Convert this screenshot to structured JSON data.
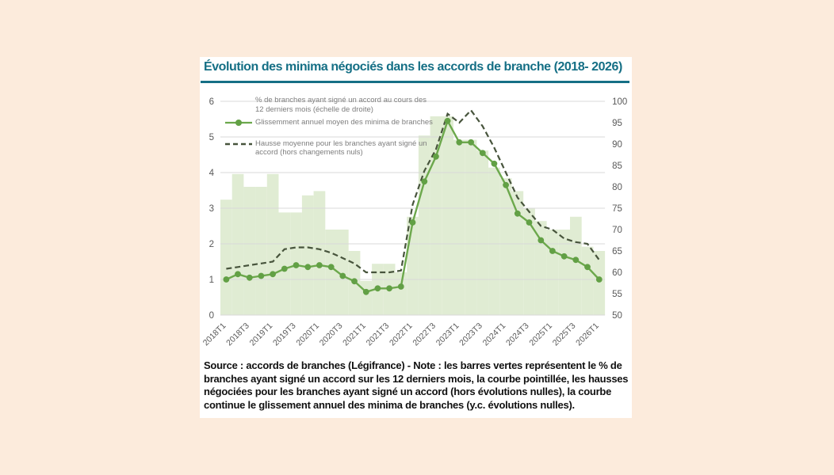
{
  "page": {
    "background_color": "#fcebdc",
    "card_color": "#ffffff"
  },
  "header": {
    "title": "Évolution des minima négociés dans les accords de branche (2018- 2026)",
    "accent_color": "#156f85"
  },
  "legend": {
    "items": [
      {
        "marker": "bar-swatch",
        "lines": [
          "% de branches ayant signé un accord au cours des",
          "12 derniers mois (échelle de droite)"
        ]
      },
      {
        "marker": "solid-line-with-dot",
        "lines": [
          "Glissemment annuel moyen des minima de branches"
        ]
      },
      {
        "marker": "dashed-line",
        "lines": [
          "Hausse moyenne pour les branches ayant signé un",
          "accord (hors changements nuls)"
        ]
      }
    ]
  },
  "chart_data": {
    "type": "bar+line combo",
    "categories": [
      "2018T1",
      "2018T2",
      "2018T3",
      "2018T4",
      "2019T1",
      "2019T2",
      "2019T3",
      "2019T4",
      "2020T1",
      "2020T2",
      "2020T3",
      "2020T4",
      "2021T1",
      "2021T2",
      "2021T3",
      "2021T4",
      "2022T1",
      "2022T2",
      "2022T3",
      "2022T4",
      "2023T1",
      "2023T2",
      "2023T3",
      "2023T4",
      "2024T1",
      "2024T2",
      "2024T3",
      "2024T4",
      "2025T1",
      "2025T2",
      "2025T3",
      "2025T4",
      "2026T1"
    ],
    "x_tick_labels": [
      "2018T1",
      "2018T3",
      "2019T1",
      "2019T3",
      "2020T1",
      "2020T3",
      "2021T1",
      "2021T3",
      "2022T1",
      "2022T3",
      "2023T1",
      "2023T3",
      "2024T1",
      "2024T3",
      "2025T1",
      "2025T3",
      "2026T1"
    ],
    "left_axis": {
      "min": 0,
      "max": 6,
      "ticks": [
        0,
        1,
        2,
        3,
        4,
        5,
        6
      ]
    },
    "right_axis": {
      "min": 50,
      "max": 100,
      "ticks": [
        50,
        55,
        60,
        65,
        70,
        75,
        80,
        85,
        90,
        95,
        100
      ]
    },
    "grid": "horizontal, at every left-axis unit",
    "legend_position": "top-left inside plot",
    "series": [
      {
        "name": "% de branches ayant signé un accord au cours des 12 derniers mois (échelle de droite)",
        "type": "bar",
        "axis": "right",
        "color": "#e0ecd3",
        "values": [
          77,
          83,
          80,
          80,
          83,
          74,
          74,
          78,
          79,
          70,
          70,
          65,
          58,
          62,
          62,
          60,
          73,
          92,
          96.5,
          96.5,
          91,
          91,
          88.5,
          84.5,
          82,
          79,
          75,
          72,
          70,
          70,
          73,
          66,
          65
        ]
      },
      {
        "name": "Glissemment annuel moyen des minima de branches",
        "type": "line",
        "axis": "left",
        "color": "#6ca84c",
        "marker_color": "#62a045",
        "values": [
          1.0,
          1.15,
          1.05,
          1.1,
          1.15,
          1.3,
          1.4,
          1.35,
          1.4,
          1.35,
          1.1,
          0.95,
          0.65,
          0.75,
          0.75,
          0.8,
          2.6,
          3.75,
          4.45,
          5.45,
          4.85,
          4.85,
          4.55,
          4.25,
          3.65,
          2.85,
          2.6,
          2.1,
          1.8,
          1.65,
          1.55,
          1.35,
          1.0
        ]
      },
      {
        "name": "Hausse moyenne pour les branches ayant signé un accord (hors changements nuls)",
        "type": "dashed-line",
        "axis": "left",
        "color": "#47543c",
        "values": [
          1.3,
          1.35,
          1.4,
          1.45,
          1.5,
          1.85,
          1.9,
          1.9,
          1.85,
          1.75,
          1.6,
          1.45,
          1.2,
          1.2,
          1.2,
          1.25,
          3.1,
          4.05,
          4.65,
          5.65,
          5.4,
          5.75,
          5.3,
          4.7,
          4.0,
          3.3,
          2.9,
          2.5,
          2.4,
          2.15,
          2.05,
          2.0,
          1.55
        ]
      }
    ],
    "style": {
      "grid_color": "#d9d9d9",
      "axis_text_color": "#595959"
    }
  },
  "footnote": {
    "text": "Source : accords de branches (Légifrance) - Note : les barres vertes représentent le % de branches ayant signé un accord sur les 12 derniers mois, la courbe pointillée, les hausses négociées pour les branches ayant signé un accord (hors évolutions nulles), la courbe continue le glissement annuel des minima de branches (y.c. évolutions nulles)."
  }
}
